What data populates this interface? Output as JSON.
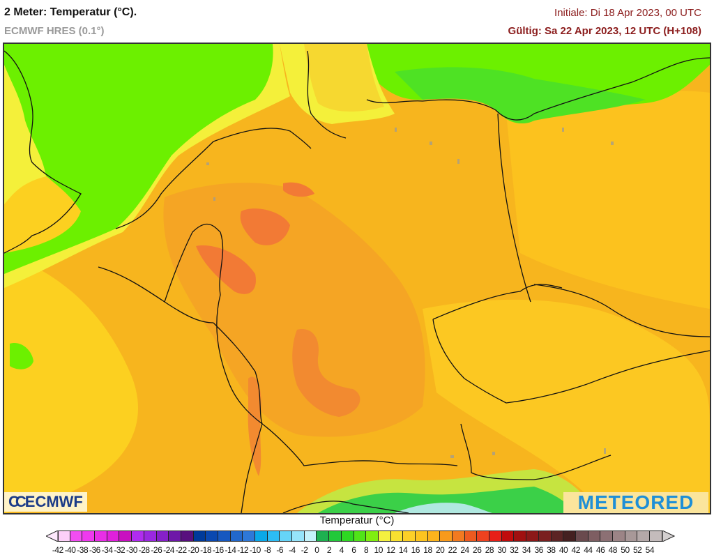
{
  "header": {
    "title": "2 Meter: Temperatur (°C).",
    "model": "ECMWF HRES (0.1°)",
    "initial": "Initiale: Di 18 Apr 2023, 00 UTC",
    "valid": "Gültig: Sa 22 Apr 2023, 12 UTC (H+108)"
  },
  "map": {
    "variable": "2m temperature",
    "unit": "°C",
    "region": "Central Europe (Germany, Benelux, Poland, Czechia, Alps)",
    "colors": {
      "sea_green": "#6cf000",
      "coast_yellow": "#f4f03a",
      "land_yellow": "#fcd020",
      "land_orange": "#f7b51e",
      "warm_orange": "#f5962b",
      "hot_spot": "#f27a35",
      "alpine_green": "#2fcc45",
      "border": "#111111",
      "lakes": "#9a9a9a"
    }
  },
  "logos": {
    "left": {
      "mark": "CC",
      "text": "ECMWF"
    },
    "right": {
      "text": "METEORED"
    }
  },
  "colorbar": {
    "title": "Temperatur (°C)",
    "labels": [
      "-42",
      "-40",
      "-38",
      "-36",
      "-34",
      "-32",
      "-30",
      "-28",
      "-26",
      "-24",
      "-22",
      "-20",
      "-18",
      "-16",
      "-14",
      "-12",
      "-10",
      "-8",
      "-6",
      "-4",
      "-2",
      "0",
      "2",
      "4",
      "6",
      "8",
      "10",
      "12",
      "14",
      "16",
      "18",
      "20",
      "22",
      "24",
      "26",
      "28",
      "30",
      "32",
      "34",
      "36",
      "38",
      "40",
      "42",
      "44",
      "46",
      "48",
      "50",
      "52",
      "54"
    ],
    "colors": [
      "#fcd0f8",
      "#f24ef2",
      "#ef3aee",
      "#e82ee6",
      "#e020dc",
      "#c810c0",
      "#b02cf0",
      "#9a28e0",
      "#8620c8",
      "#6e18a8",
      "#58107e",
      "#003a9a",
      "#0a48b0",
      "#1658c0",
      "#2268cc",
      "#2e78d8",
      "#0aa8e8",
      "#2cbcf4",
      "#66d4f8",
      "#96e4fa",
      "#c6f2fa",
      "#1eb050",
      "#22c83a",
      "#2ed822",
      "#50e418",
      "#80ee10",
      "#f4f040",
      "#f8e030",
      "#fcd028",
      "#fcc420",
      "#fcb41c",
      "#f89a1c",
      "#f27a20",
      "#ee5a20",
      "#ee4220",
      "#e82018",
      "#c00c0c",
      "#a01010",
      "#8c1818",
      "#7a2020",
      "#5c2424",
      "#442020",
      "#6a4a4e",
      "#7e5e62",
      "#8c7074",
      "#9c8486",
      "#a89898",
      "#b4a8a8",
      "#c4bcbc"
    ],
    "arrow_left_color": "#fde8fc",
    "arrow_right_color": "#d4d0d0"
  }
}
